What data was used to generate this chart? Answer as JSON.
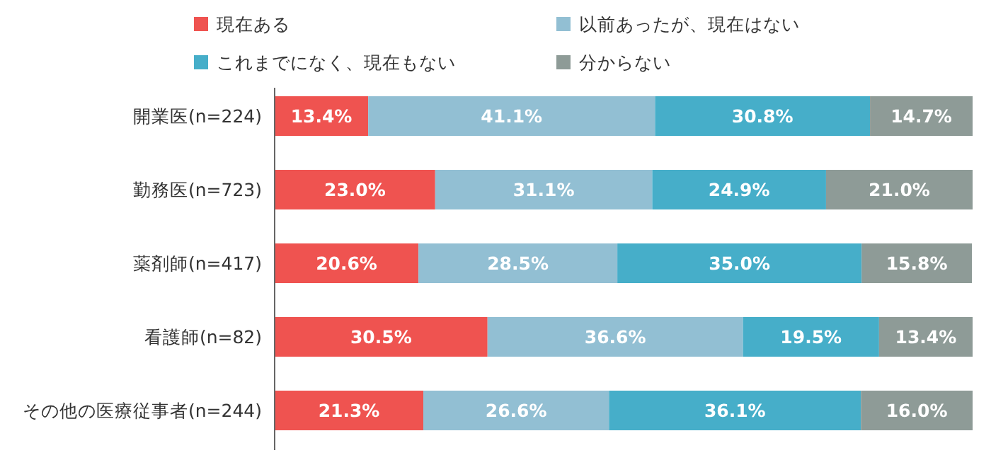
{
  "chart_data": {
    "type": "bar",
    "orientation": "horizontal",
    "stacked": true,
    "legend": "top",
    "categories": [
      "開業医(n=224)",
      "勤務医(n=723)",
      "薬剤師(n=417)",
      "看護師(n=82)",
      "その他の医療従事者(n=244)"
    ],
    "series": [
      {
        "name": "現在ある",
        "color": "#ef5350",
        "values": [
          13.4,
          23.0,
          20.6,
          30.5,
          21.3
        ],
        "value_labels": [
          "13.4%",
          "23.0%",
          "20.6%",
          "30.5%",
          "21.3%"
        ]
      },
      {
        "name": "以前あったが、現在はない",
        "color": "#92bfd3",
        "values": [
          41.1,
          31.1,
          28.5,
          36.6,
          26.6
        ],
        "value_labels": [
          "41.1%",
          "31.1%",
          "28.5%",
          "36.6%",
          "26.6%"
        ]
      },
      {
        "name": "これまでになく、現在もない",
        "color": "#46aec9",
        "values": [
          30.8,
          24.9,
          35.0,
          19.5,
          36.1
        ],
        "value_labels": [
          "30.8%",
          "24.9%",
          "35.0%",
          "19.5%",
          "36.1%"
        ]
      },
      {
        "name": "分からない",
        "color": "#8e9b97",
        "values": [
          14.7,
          21.0,
          15.8,
          13.4,
          16.0
        ],
        "value_labels": [
          "14.7%",
          "21.0%",
          "15.8%",
          "13.4%",
          "16.0%"
        ]
      }
    ]
  }
}
